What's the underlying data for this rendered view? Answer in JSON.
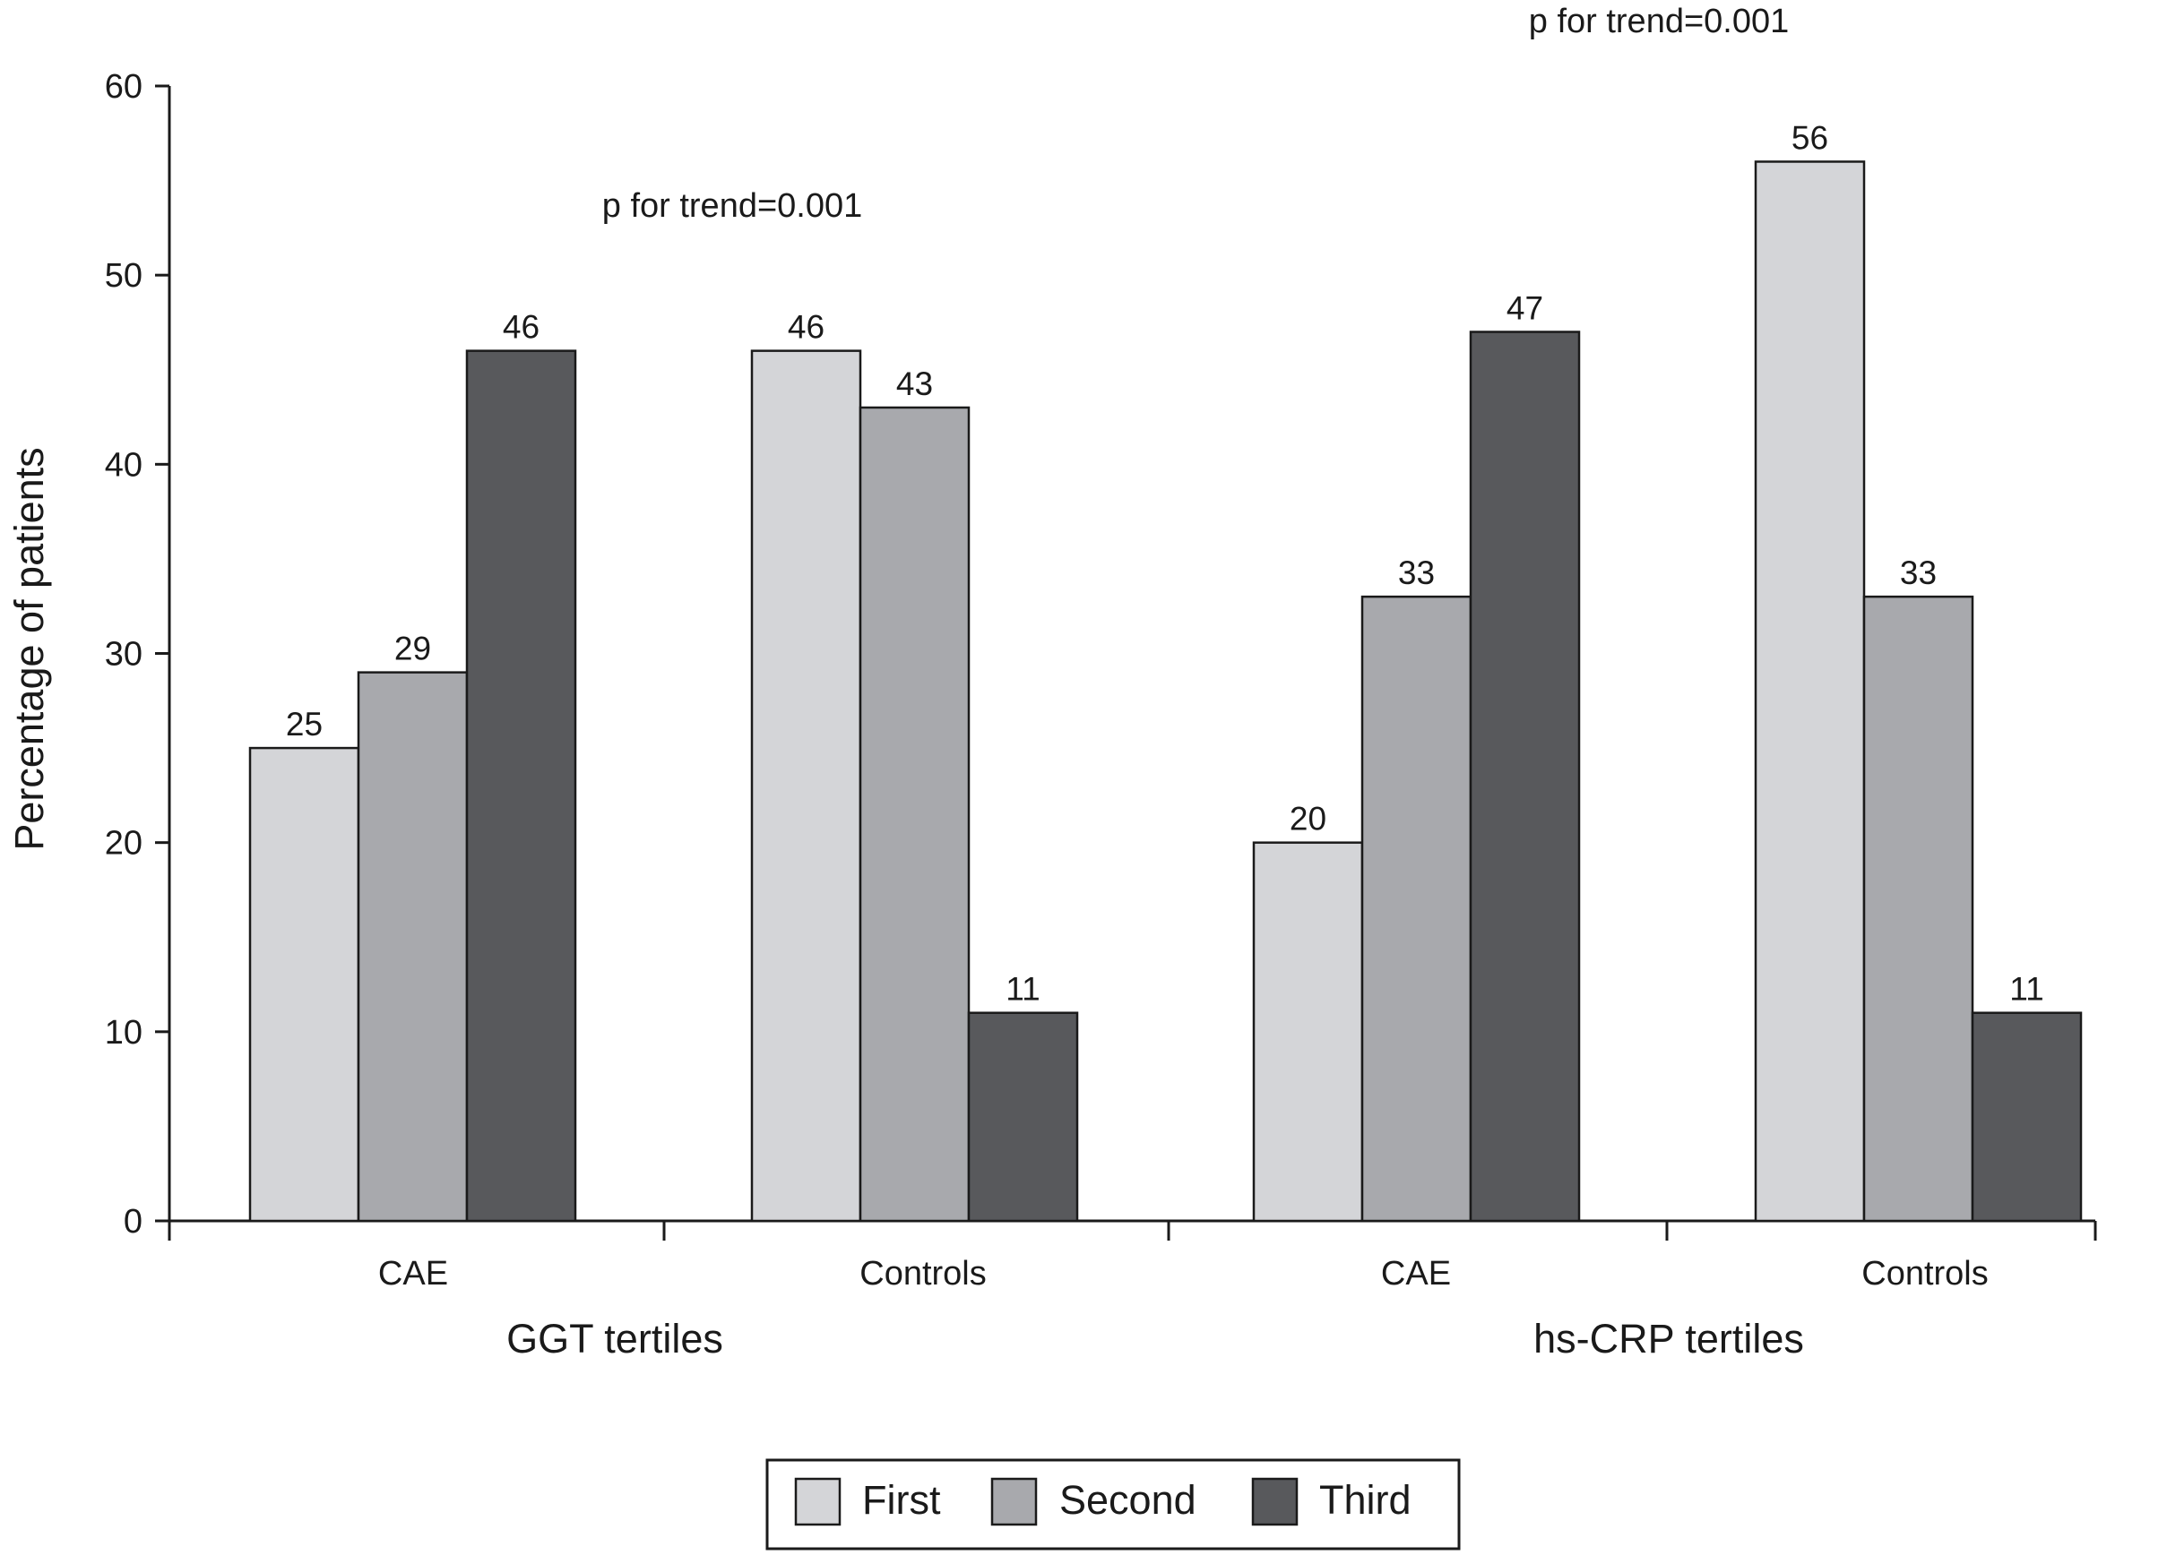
{
  "chart_data": {
    "type": "bar",
    "ylabel": "Percentage of patients",
    "ylim": [
      0,
      60
    ],
    "yticks": [
      0,
      10,
      20,
      30,
      40,
      50,
      60
    ],
    "grid": false,
    "legend_position": "bottom-center",
    "series": [
      {
        "name": "First",
        "color": "#d4d5d8"
      },
      {
        "name": "Second",
        "color": "#a8a9ad"
      },
      {
        "name": "Third",
        "color": "#58595c"
      }
    ],
    "groups": [
      {
        "label": "GGT tertiles",
        "annotation": "p for trend=0.001",
        "categories": [
          {
            "label": "CAE",
            "values": [
              25,
              29,
              46
            ]
          },
          {
            "label": "Controls",
            "values": [
              46,
              43,
              11
            ]
          }
        ]
      },
      {
        "label": "hs-CRP tertiles",
        "annotation": "p for trend=0.001",
        "categories": [
          {
            "label": "CAE",
            "values": [
              20,
              33,
              47
            ]
          },
          {
            "label": "Controls",
            "values": [
              56,
              33,
              11
            ]
          }
        ]
      }
    ]
  }
}
